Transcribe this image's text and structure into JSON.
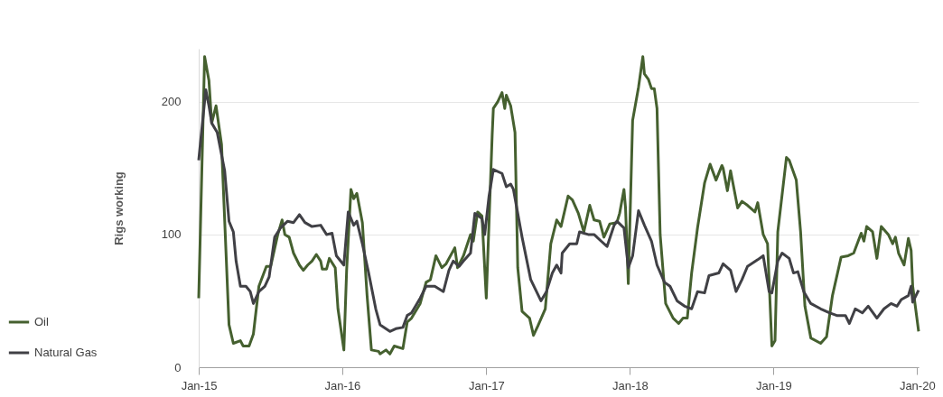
{
  "chart_data": {
    "type": "line",
    "ylabel": "Rigs working",
    "xlim": [
      "2015-01-01",
      "2020-01-05"
    ],
    "ylim": [
      0,
      240
    ],
    "yticks": [
      0,
      100,
      200
    ],
    "xticks": [
      {
        "value": "2015-01-01",
        "label": "Jan-15"
      },
      {
        "value": "2016-01-01",
        "label": "Jan-16"
      },
      {
        "value": "2017-01-01",
        "label": "Jan-17"
      },
      {
        "value": "2018-01-01",
        "label": "Jan-18"
      },
      {
        "value": "2019-01-01",
        "label": "Jan-19"
      },
      {
        "value": "2020-01-01",
        "label": "Jan-20"
      }
    ],
    "grid": "y",
    "legend": "bottom left",
    "marker": "none",
    "line_style": "solid",
    "series": [
      {
        "name": "Oil",
        "color": "#45602f",
        "x": [
          "2015-01-01",
          "2015-01-16",
          "2015-01-27",
          "2015-02-03",
          "2015-02-14",
          "2015-02-28",
          "2015-03-19",
          "2015-03-30",
          "2015-04-17",
          "2015-04-24",
          "2015-05-09",
          "2015-05-20",
          "2015-06-03",
          "2015-06-22",
          "2015-07-03",
          "2015-07-21",
          "2015-08-01",
          "2015-08-08",
          "2015-08-19",
          "2015-08-30",
          "2015-09-14",
          "2015-09-24",
          "2015-10-05",
          "2015-10-16",
          "2015-10-27",
          "2015-11-07",
          "2015-11-11",
          "2015-11-22",
          "2015-11-29",
          "2015-12-14",
          "2015-12-21",
          "2016-01-05",
          "2016-01-12",
          "2016-01-23",
          "2016-01-30",
          "2016-02-07",
          "2016-02-21",
          "2016-03-04",
          "2016-03-15",
          "2016-04-02",
          "2016-04-06",
          "2016-04-21",
          "2016-05-01",
          "2016-05-12",
          "2016-06-03",
          "2016-06-14",
          "2016-06-25",
          "2016-07-17",
          "2016-08-01",
          "2016-08-12",
          "2016-08-26",
          "2016-09-10",
          "2016-09-21",
          "2016-10-13",
          "2016-10-20",
          "2016-11-04",
          "2016-11-22",
          "2016-11-29",
          "2016-12-10",
          "2016-12-21",
          "2017-01-01",
          "2017-01-16",
          "2017-01-19",
          "2017-01-30",
          "2017-02-10",
          "2017-02-17",
          "2017-02-21",
          "2017-03-04",
          "2017-03-15",
          "2017-03-22",
          "2017-04-02",
          "2017-04-21",
          "2017-05-01",
          "2017-05-12",
          "2017-05-31",
          "2017-06-14",
          "2017-06-29",
          "2017-07-10",
          "2017-07-28",
          "2017-08-08",
          "2017-08-23",
          "2017-09-06",
          "2017-09-21",
          "2017-10-02",
          "2017-10-16",
          "2017-10-27",
          "2017-11-11",
          "2017-11-29",
          "2017-12-06",
          "2017-12-17",
          "2017-12-21",
          "2017-12-28",
          "2018-01-08",
          "2018-01-23",
          "2018-02-03",
          "2018-02-07",
          "2018-02-17",
          "2018-02-25",
          "2018-03-04",
          "2018-03-11",
          "2018-03-19",
          "2018-04-02",
          "2018-04-21",
          "2018-05-05",
          "2018-05-16",
          "2018-05-27",
          "2018-06-07",
          "2018-06-22",
          "2018-07-10",
          "2018-07-24",
          "2018-08-08",
          "2018-08-23",
          "2018-08-26",
          "2018-09-06",
          "2018-09-14",
          "2018-10-02",
          "2018-10-13",
          "2018-10-27",
          "2018-11-15",
          "2018-11-22",
          "2018-12-06",
          "2018-12-17",
          "2018-12-28",
          "2019-01-05",
          "2019-01-12",
          "2019-02-03",
          "2019-02-10",
          "2019-02-28",
          "2019-03-11",
          "2019-03-22",
          "2019-04-06",
          "2019-05-01",
          "2019-05-16",
          "2019-05-31",
          "2019-06-22",
          "2019-07-10",
          "2019-07-24",
          "2019-08-12",
          "2019-08-19",
          "2019-08-26",
          "2019-09-10",
          "2019-09-21",
          "2019-10-02",
          "2019-10-20",
          "2019-10-31",
          "2019-11-07",
          "2019-11-15",
          "2019-11-29",
          "2019-12-10",
          "2019-12-17",
          "2019-12-21",
          "2020-01-05"
        ],
        "values": [
          52,
          234,
          216,
          184,
          197,
          168,
          32,
          18,
          20,
          16,
          16,
          25,
          61,
          76,
          76,
          100,
          111,
          100,
          98,
          86,
          77,
          73,
          77,
          80,
          85,
          80,
          74,
          74,
          82,
          75,
          44,
          13,
          73,
          134,
          127,
          131,
          109,
          54,
          13,
          12,
          10,
          13,
          10,
          16,
          14,
          34,
          37,
          48,
          64,
          66,
          84,
          75,
          78,
          90,
          75,
          84,
          100,
          95,
          117,
          114,
          52,
          175,
          195,
          200,
          207,
          195,
          205,
          197,
          177,
          75,
          42,
          37,
          24,
          31,
          44,
          93,
          111,
          106,
          129,
          126,
          116,
          102,
          122,
          111,
          110,
          98,
          108,
          109,
          116,
          134,
          120,
          63,
          186,
          211,
          234,
          221,
          217,
          210,
          210,
          195,
          100,
          48,
          37,
          33,
          37,
          37,
          71,
          105,
          139,
          153,
          141,
          152,
          150,
          133,
          148,
          120,
          125,
          122,
          117,
          124,
          100,
          93,
          16,
          20,
          102,
          158,
          156,
          141,
          102,
          46,
          22,
          18,
          23,
          54,
          83,
          84,
          86,
          101,
          95,
          106,
          102,
          82,
          106,
          100,
          93,
          98,
          86,
          77,
          97,
          88,
          61,
          27
        ]
      },
      {
        "name": "Natural Gas",
        "color": "#404045",
        "x": [
          "2015-01-01",
          "2015-01-05",
          "2015-01-19",
          "2015-01-27",
          "2015-02-03",
          "2015-02-17",
          "2015-03-08",
          "2015-03-19",
          "2015-03-30",
          "2015-04-06",
          "2015-04-17",
          "2015-05-01",
          "2015-05-12",
          "2015-05-20",
          "2015-06-03",
          "2015-06-18",
          "2015-06-29",
          "2015-07-13",
          "2015-07-28",
          "2015-08-15",
          "2015-08-30",
          "2015-09-14",
          "2015-09-28",
          "2015-10-16",
          "2015-11-07",
          "2015-11-22",
          "2015-12-06",
          "2015-12-17",
          "2016-01-05",
          "2016-01-16",
          "2016-01-30",
          "2016-02-07",
          "2016-02-21",
          "2016-03-08",
          "2016-03-26",
          "2016-04-06",
          "2016-05-01",
          "2016-05-16",
          "2016-06-03",
          "2016-06-14",
          "2016-06-25",
          "2016-07-17",
          "2016-08-01",
          "2016-08-23",
          "2016-09-03",
          "2016-09-14",
          "2016-09-28",
          "2016-10-09",
          "2016-10-24",
          "2016-11-04",
          "2016-11-22",
          "2016-12-03",
          "2016-12-21",
          "2016-12-28",
          "2017-01-08",
          "2017-01-19",
          "2017-02-10",
          "2017-02-21",
          "2017-03-04",
          "2017-03-11",
          "2017-04-02",
          "2017-04-24",
          "2017-05-20",
          "2017-06-03",
          "2017-06-18",
          "2017-06-29",
          "2017-07-10",
          "2017-07-13",
          "2017-08-01",
          "2017-08-19",
          "2017-08-26",
          "2017-09-17",
          "2017-10-02",
          "2017-10-20",
          "2017-11-04",
          "2017-11-22",
          "2017-11-29",
          "2017-12-17",
          "2017-12-28",
          "2018-01-08",
          "2018-01-23",
          "2018-02-07",
          "2018-02-25",
          "2018-03-11",
          "2018-03-30",
          "2018-04-13",
          "2018-05-01",
          "2018-05-20",
          "2018-06-07",
          "2018-06-22",
          "2018-07-10",
          "2018-07-21",
          "2018-08-15",
          "2018-08-26",
          "2018-09-14",
          "2018-09-28",
          "2018-10-13",
          "2018-10-27",
          "2018-11-22",
          "2018-12-06",
          "2018-12-21",
          "2018-12-28",
          "2019-01-12",
          "2019-01-23",
          "2019-02-10",
          "2019-02-21",
          "2019-03-04",
          "2019-03-19",
          "2019-04-06",
          "2019-05-01",
          "2019-05-23",
          "2019-06-11",
          "2019-07-03",
          "2019-07-13",
          "2019-07-28",
          "2019-08-15",
          "2019-08-30",
          "2019-09-21",
          "2019-10-09",
          "2019-10-27",
          "2019-11-11",
          "2019-11-22",
          "2019-12-10",
          "2019-12-17",
          "2019-12-21",
          "2020-01-05"
        ],
        "values": [
          156,
          168,
          209,
          197,
          184,
          177,
          148,
          110,
          102,
          80,
          61,
          61,
          57,
          48,
          57,
          61,
          68,
          98,
          105,
          110,
          109,
          115,
          109,
          106,
          107,
          100,
          101,
          84,
          77,
          117,
          107,
          110,
          93,
          71,
          44,
          32,
          27,
          29,
          30,
          39,
          41,
          52,
          61,
          61,
          59,
          57,
          73,
          80,
          76,
          80,
          86,
          116,
          112,
          100,
          129,
          149,
          146,
          136,
          138,
          134,
          98,
          66,
          50,
          57,
          71,
          77,
          71,
          86,
          93,
          93,
          102,
          100,
          100,
          95,
          91,
          107,
          110,
          105,
          75,
          84,
          118,
          107,
          95,
          77,
          64,
          61,
          50,
          46,
          44,
          57,
          56,
          69,
          71,
          78,
          73,
          57,
          66,
          76,
          81,
          84,
          57,
          56,
          80,
          86,
          82,
          71,
          72,
          57,
          48,
          44,
          41,
          39,
          39,
          33,
          44,
          41,
          46,
          37,
          44,
          48,
          46,
          51,
          54,
          61,
          49,
          58
        ]
      }
    ]
  }
}
